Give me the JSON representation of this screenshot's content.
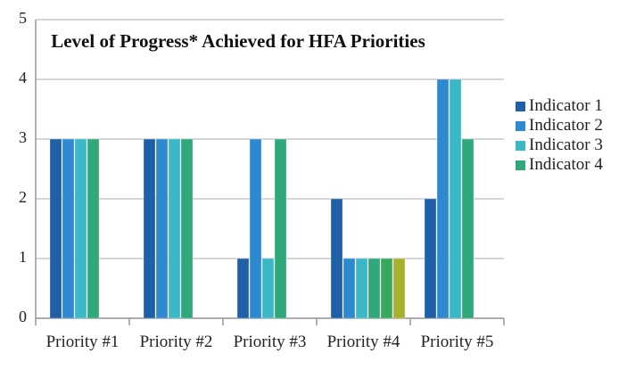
{
  "chart_data": {
    "type": "bar",
    "title": "Level of Progress* Achieved for HFA Priorities",
    "categories": [
      "Priority #1",
      "Priority #2",
      "Priority #3",
      "Priority #4",
      "Priority #5"
    ],
    "series": [
      {
        "name": "Indicator 1",
        "color": "#1f5fa8",
        "values": [
          3,
          3,
          1,
          2,
          2
        ]
      },
      {
        "name": "Indicator 2",
        "color": "#2e8ad0",
        "values": [
          3,
          3,
          3,
          1,
          4
        ]
      },
      {
        "name": "Indicator 3",
        "color": "#3bb8c8",
        "values": [
          3,
          3,
          1,
          1,
          4
        ]
      },
      {
        "name": "Indicator 4",
        "color": "#2fa87a",
        "values": [
          3,
          3,
          3,
          1,
          3
        ]
      },
      {
        "color": "#3aa85a",
        "values": [
          null,
          null,
          null,
          1,
          null
        ]
      },
      {
        "color": "#a8b030",
        "values": [
          null,
          null,
          null,
          1,
          null
        ]
      }
    ],
    "ylim": [
      0,
      5
    ],
    "yticks": [
      0,
      1,
      2,
      3,
      4,
      5
    ],
    "grid": true,
    "legend": "right"
  }
}
